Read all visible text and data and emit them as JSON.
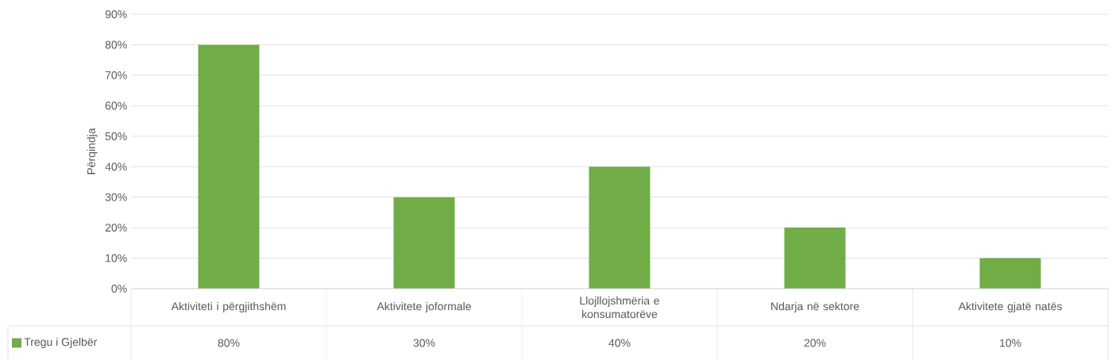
{
  "chart_data": {
    "type": "bar",
    "ylabel": "Përqindja",
    "categories": [
      "Aktiviteti i përgjithshëm",
      "Aktivitete joformale",
      "Llojllojshmëria e konsumatorëve",
      "Ndarja në sektore",
      "Aktivitete gjatë natës"
    ],
    "series": [
      {
        "name": "Tregu i Gjelbër",
        "color": "#70ad47",
        "values": [
          80,
          30,
          40,
          20,
          10
        ],
        "value_labels": [
          "80%",
          "30%",
          "40%",
          "20%",
          "10%"
        ]
      }
    ],
    "ylim": [
      0,
      90
    ],
    "yticks": [
      {
        "value": 0,
        "label": "0%"
      },
      {
        "value": 10,
        "label": "10%"
      },
      {
        "value": 20,
        "label": "20%"
      },
      {
        "value": 30,
        "label": "30%"
      },
      {
        "value": 40,
        "label": "40%"
      },
      {
        "value": 50,
        "label": "50%"
      },
      {
        "value": 60,
        "label": "60%"
      },
      {
        "value": 70,
        "label": "70%"
      },
      {
        "value": 80,
        "label": "80%"
      },
      {
        "value": 90,
        "label": "90%"
      }
    ],
    "grid": "y",
    "legend": "bottom"
  }
}
